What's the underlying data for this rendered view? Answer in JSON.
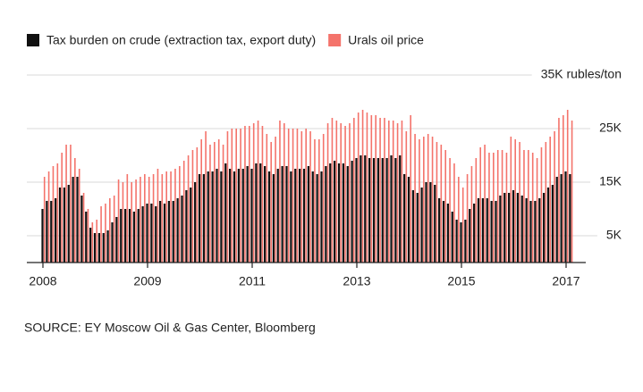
{
  "chart_data": {
    "type": "bar",
    "source": "SOURCE: EY Moscow Oil & Gas Center, Bloomberg",
    "categories": [
      "2008",
      null,
      null,
      null,
      null,
      null,
      null,
      null,
      null,
      null,
      null,
      null,
      null,
      null,
      null,
      null,
      null,
      null,
      null,
      null,
      null,
      null,
      null,
      null,
      "2009",
      null,
      null,
      null,
      null,
      null,
      null,
      null,
      null,
      null,
      null,
      null,
      null,
      null,
      null,
      null,
      null,
      null,
      null,
      null,
      null,
      null,
      null,
      null,
      "2011",
      null,
      null,
      null,
      null,
      null,
      null,
      null,
      null,
      null,
      null,
      null,
      null,
      null,
      null,
      null,
      null,
      null,
      null,
      null,
      null,
      null,
      null,
      null,
      "2013",
      null,
      null,
      null,
      null,
      null,
      null,
      null,
      null,
      null,
      null,
      null,
      null,
      null,
      null,
      null,
      null,
      null,
      null,
      null,
      null,
      null,
      null,
      null,
      "2015",
      null,
      null,
      null,
      null,
      null,
      null,
      null,
      null,
      null,
      null,
      null,
      null,
      null,
      null,
      null,
      null,
      null,
      null,
      null,
      null,
      null,
      null,
      null,
      "2017",
      null
    ],
    "series": [
      {
        "name": "Tax burden on crude (extraction tax, export duty)",
        "color": "#111111",
        "values": [
          10000,
          11500,
          11500,
          12000,
          14000,
          14000,
          14500,
          16000,
          16000,
          12500,
          9500,
          6500,
          5500,
          5500,
          5500,
          6000,
          7500,
          8500,
          10000,
          10000,
          10000,
          9500,
          10000,
          10500,
          11000,
          11000,
          10500,
          11500,
          11000,
          11500,
          11500,
          12000,
          12500,
          13500,
          14000,
          15000,
          16500,
          16500,
          17000,
          17000,
          17500,
          17000,
          18500,
          17500,
          17000,
          17500,
          17500,
          18000,
          17500,
          18500,
          18500,
          18000,
          17000,
          16500,
          17500,
          18000,
          18000,
          17000,
          17500,
          17500,
          17500,
          18000,
          17000,
          16500,
          17000,
          18000,
          18500,
          19000,
          18500,
          18500,
          18000,
          19000,
          19500,
          20000,
          20000,
          19500,
          19500,
          19500,
          19500,
          19500,
          20000,
          19500,
          20000,
          16500,
          16000,
          13500,
          13000,
          14000,
          15000,
          15000,
          14500,
          12000,
          11500,
          11000,
          9500,
          8000,
          7500,
          8000,
          10000,
          11000,
          12000,
          12000,
          12000,
          11500,
          11500,
          12500,
          13000,
          13000,
          13500,
          13000,
          12500,
          12000,
          11500,
          11500,
          12000,
          13000,
          14000,
          14500,
          16000,
          16500,
          17000,
          16500
        ]
      },
      {
        "name": "Urals oil price",
        "color": "#f4736b",
        "values": [
          16000,
          17000,
          18000,
          18500,
          20500,
          22000,
          22000,
          19500,
          17500,
          13000,
          10000,
          7500,
          8000,
          10500,
          11000,
          12000,
          12500,
          15500,
          15000,
          16500,
          15000,
          15500,
          16000,
          16500,
          16000,
          16500,
          17500,
          16500,
          17000,
          17000,
          17500,
          18000,
          19000,
          20000,
          21000,
          21500,
          23000,
          24500,
          22000,
          22500,
          23000,
          22000,
          24500,
          25000,
          25000,
          25000,
          25500,
          25500,
          26000,
          26500,
          25500,
          24000,
          22500,
          23500,
          26500,
          26000,
          25000,
          25000,
          25000,
          24500,
          25000,
          24500,
          23000,
          23000,
          24000,
          26000,
          27000,
          26500,
          26000,
          25500,
          26000,
          27000,
          28000,
          28500,
          28000,
          27500,
          27500,
          27000,
          27000,
          26500,
          26500,
          26000,
          26500,
          24500,
          27500,
          24000,
          23000,
          23500,
          24000,
          23500,
          22500,
          22000,
          21000,
          19500,
          18500,
          16000,
          14000,
          16500,
          18000,
          19500,
          21500,
          22000,
          20500,
          20500,
          21000,
          21000,
          20500,
          23500,
          23000,
          22500,
          21000,
          21000,
          20500,
          19500,
          21500,
          22500,
          23500,
          24500,
          27000,
          27500,
          28500,
          26500
        ]
      }
    ],
    "ylim": [
      0,
      35000
    ],
    "yticks": [
      {
        "value": 5000,
        "label": "5K"
      },
      {
        "value": 15000,
        "label": "15K"
      },
      {
        "value": 25000,
        "label": "25K"
      },
      {
        "value": 35000,
        "label": "35K rubles/ton"
      }
    ],
    "grid": true,
    "legend": "top"
  }
}
